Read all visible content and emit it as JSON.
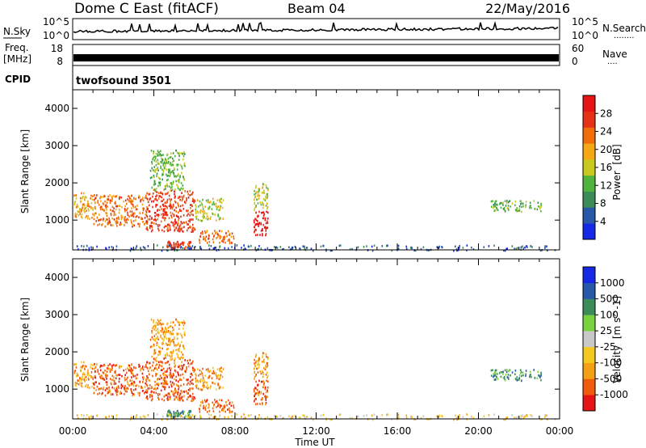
{
  "header": {
    "station": "Dome C East (fitACF)",
    "beam": "Beam 04",
    "date": "22/May/2016"
  },
  "noise_panel": {
    "left_label": "N.Sky",
    "right_label": "N.Search",
    "left_ticks": [
      "10^5",
      "10^0"
    ],
    "right_ticks": [
      "10^5",
      "10^0"
    ],
    "right_dots": "........"
  },
  "freq_panel": {
    "left_label_1": "Freq.",
    "left_label_2": "[MHz]",
    "right_label": "Nave",
    "left_ticks": [
      "18",
      "8"
    ],
    "right_ticks": [
      "60",
      "0"
    ],
    "right_dots": "...."
  },
  "cpid": {
    "label": "CPID",
    "program": "twofsound 3501"
  },
  "colors": {
    "power_scale": [
      "#1428e6",
      "#2858a8",
      "#3c8c5a",
      "#50b43c",
      "#c8c81e",
      "#f5a814",
      "#f06e0a",
      "#e63214",
      "#e61414"
    ],
    "velocity_scale": [
      "#e61414",
      "#f05a0a",
      "#f5a014",
      "#f5c81e",
      "#c8c8c8",
      "#78d23c",
      "#3c8c5a",
      "#2858a8",
      "#1428e6"
    ]
  },
  "chart_data": [
    {
      "type": "heatmap",
      "title": "Power",
      "quantity": "Power",
      "unit": "[dB]",
      "xlabel": "Time UT",
      "ylabel": "Slant Range [km]",
      "xlim": [
        "00:00",
        "24:00"
      ],
      "ylim": [
        200,
        4500
      ],
      "x_ticks": [
        "00:00",
        "04:00",
        "08:00",
        "12:00",
        "16:00",
        "20:00",
        "00:00"
      ],
      "y_ticks": [
        1000,
        2000,
        3000,
        4000
      ],
      "colorbar_ticks": [
        "4",
        "8",
        "12",
        "16",
        "20",
        "24",
        "28"
      ],
      "colorbar_range": [
        0,
        30
      ],
      "scatter_regions": [
        {
          "t_start": 0.0,
          "t_end": 1.0,
          "r_min": 1050,
          "r_max": 1750,
          "level": 5
        },
        {
          "t_start": 1.0,
          "t_end": 3.6,
          "r_min": 850,
          "r_max": 1700,
          "level": 6
        },
        {
          "t_start": 3.6,
          "t_end": 6.0,
          "r_min": 700,
          "r_max": 1850,
          "level": 7
        },
        {
          "t_start": 3.8,
          "t_end": 5.5,
          "r_min": 1800,
          "r_max": 2900,
          "level": 3
        },
        {
          "t_start": 6.0,
          "t_end": 7.4,
          "r_min": 1000,
          "r_max": 1600,
          "level": 4
        },
        {
          "t_start": 4.6,
          "t_end": 5.8,
          "r_min": 250,
          "r_max": 450,
          "level": 7
        },
        {
          "t_start": 6.2,
          "t_end": 8.0,
          "r_min": 400,
          "r_max": 750,
          "level": 6
        },
        {
          "t_start": 8.9,
          "t_end": 9.6,
          "r_min": 600,
          "r_max": 1300,
          "level": 8
        },
        {
          "t_start": 8.9,
          "t_end": 9.6,
          "r_min": 1300,
          "r_max": 2000,
          "level": 4
        },
        {
          "t_start": 20.6,
          "t_end": 23.1,
          "r_min": 1250,
          "r_max": 1550,
          "level": 3
        },
        {
          "t_start": 0.0,
          "t_end": 24.0,
          "r_min": 200,
          "r_max": 350,
          "level": 1
        }
      ]
    },
    {
      "type": "heatmap",
      "title": "Velocity",
      "quantity": "Velocity",
      "unit": "[m s^-1]",
      "xlabel": "Time UT",
      "ylabel": "Slant Range [km]",
      "xlim": [
        "00:00",
        "24:00"
      ],
      "ylim": [
        200,
        4500
      ],
      "x_ticks": [
        "00:00",
        "04:00",
        "08:00",
        "12:00",
        "16:00",
        "20:00",
        "00:00"
      ],
      "y_ticks": [
        1000,
        2000,
        3000,
        4000
      ],
      "colorbar_ticks": [
        "-1000",
        "-500",
        "-100",
        "-25",
        "25",
        "100",
        "500",
        "1000"
      ],
      "colorbar_range": [
        -1200,
        1200
      ],
      "scatter_regions": [
        {
          "t_start": 0.0,
          "t_end": 1.0,
          "r_min": 1050,
          "r_max": 1750,
          "level": 2
        },
        {
          "t_start": 1.0,
          "t_end": 3.6,
          "r_min": 850,
          "r_max": 1700,
          "level": 1
        },
        {
          "t_start": 3.6,
          "t_end": 6.0,
          "r_min": 700,
          "r_max": 1850,
          "level": 1
        },
        {
          "t_start": 3.8,
          "t_end": 5.5,
          "r_min": 1800,
          "r_max": 2900,
          "level": 2
        },
        {
          "t_start": 6.0,
          "t_end": 7.4,
          "r_min": 1000,
          "r_max": 1600,
          "level": 2
        },
        {
          "t_start": 4.6,
          "t_end": 5.8,
          "r_min": 250,
          "r_max": 450,
          "level": 6
        },
        {
          "t_start": 6.2,
          "t_end": 8.0,
          "r_min": 400,
          "r_max": 750,
          "level": 1
        },
        {
          "t_start": 8.9,
          "t_end": 9.6,
          "r_min": 600,
          "r_max": 1300,
          "level": 1
        },
        {
          "t_start": 8.9,
          "t_end": 9.6,
          "r_min": 1300,
          "r_max": 2000,
          "level": 2
        },
        {
          "t_start": 20.6,
          "t_end": 23.1,
          "r_min": 1250,
          "r_max": 1550,
          "level": 6
        },
        {
          "t_start": 0.0,
          "t_end": 24.0,
          "r_min": 200,
          "r_max": 350,
          "level": 3
        }
      ]
    }
  ]
}
